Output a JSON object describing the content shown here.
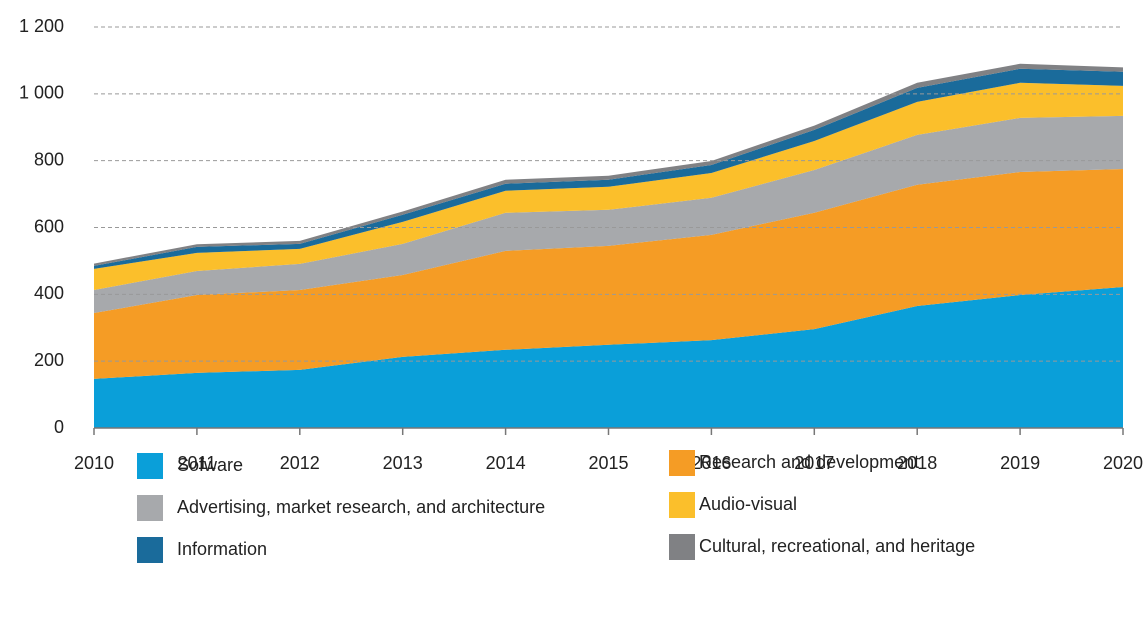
{
  "chart_data": {
    "type": "stacked_area",
    "categories": [
      "2010",
      "2011",
      "2012",
      "2013",
      "2014",
      "2015",
      "2016",
      "2017",
      "2018",
      "2019",
      "2020"
    ],
    "series": [
      {
        "name": "Sofware",
        "color": "#0a9fd9",
        "values": [
          147,
          165,
          174,
          213,
          234,
          249,
          263,
          296,
          365,
          398,
          422
        ]
      },
      {
        "name": "Research and development",
        "color": "#f59c25",
        "values": [
          197,
          233,
          239,
          245,
          296,
          296,
          315,
          348,
          363,
          368,
          353
        ]
      },
      {
        "name": "Advertising, market research, and architecture",
        "color": "#a7a9ac",
        "values": [
          69,
          72,
          78,
          93,
          114,
          108,
          111,
          128,
          149,
          162,
          159
        ]
      },
      {
        "name": "Audio-visual",
        "color": "#fbbf2b",
        "values": [
          63,
          54,
          45,
          66,
          66,
          69,
          74,
          87,
          99,
          105,
          90
        ]
      },
      {
        "name": "Information",
        "color": "#1a6b9b",
        "values": [
          9,
          18,
          15,
          21,
          21,
          21,
          24,
          33,
          42,
          42,
          42
        ]
      },
      {
        "name": "Cultural, recreational, and heritage",
        "color": "#808184",
        "values": [
          7,
          8,
          9,
          10,
          12,
          12,
          12,
          13,
          15,
          15,
          13
        ]
      }
    ],
    "ylim": [
      0,
      1200
    ],
    "yticks": [
      0,
      200,
      400,
      600,
      800,
      {
        "value": 1000,
        "label": "1 000"
      },
      {
        "value": 1200,
        "label": "1 200"
      }
    ],
    "grid": true
  }
}
